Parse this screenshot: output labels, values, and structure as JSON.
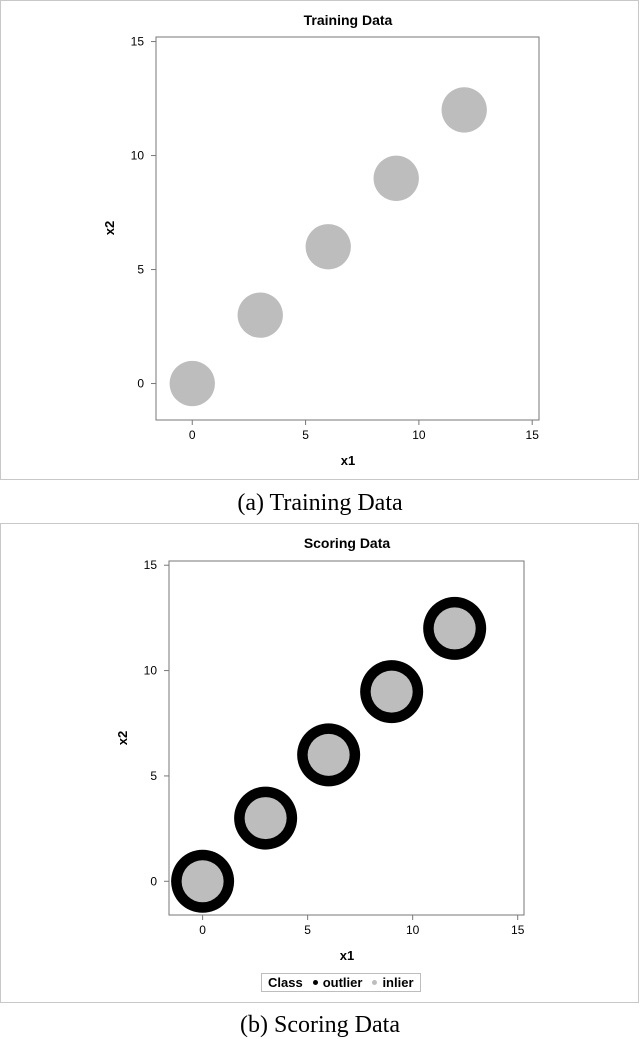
{
  "chart_data": [
    {
      "type": "scatter",
      "title": "Training Data",
      "xlabel": "x1",
      "ylabel": "x2",
      "xlim": [
        -1.6,
        15.3
      ],
      "ylim": [
        -1.6,
        15.2
      ],
      "xticks": [
        0,
        5,
        10,
        15
      ],
      "yticks": [
        0,
        5,
        10,
        15
      ],
      "grid": false,
      "series": [
        {
          "color": "#bdbdbd",
          "clusters": [
            {
              "center": [
                0,
                0
              ],
              "radius": 1.0
            },
            {
              "center": [
                3,
                3
              ],
              "radius": 1.0
            },
            {
              "center": [
                6,
                6
              ],
              "radius": 1.0
            },
            {
              "center": [
                9,
                9
              ],
              "radius": 1.0
            },
            {
              "center": [
                12,
                12
              ],
              "radius": 1.0
            }
          ]
        }
      ]
    },
    {
      "type": "scatter",
      "title": "Scoring Data",
      "xlabel": "x1",
      "ylabel": "x2",
      "xlim": [
        -1.6,
        15.3
      ],
      "ylim": [
        -1.6,
        15.2
      ],
      "xticks": [
        0,
        5,
        10,
        15
      ],
      "yticks": [
        0,
        5,
        10,
        15
      ],
      "grid": false,
      "legend": {
        "position": "bottom",
        "title": "Class"
      },
      "series": [
        {
          "name": "outlier",
          "color": "#000000",
          "clusters": [
            {
              "center": [
                0,
                0
              ],
              "radius": 1.5
            },
            {
              "center": [
                3,
                3
              ],
              "radius": 1.5
            },
            {
              "center": [
                6,
                6
              ],
              "radius": 1.5
            },
            {
              "center": [
                9,
                9
              ],
              "radius": 1.5
            },
            {
              "center": [
                12,
                12
              ],
              "radius": 1.5
            }
          ]
        },
        {
          "name": "inlier",
          "color": "#bdbdbd",
          "clusters": [
            {
              "center": [
                0,
                0
              ],
              "radius": 1.0
            },
            {
              "center": [
                3,
                3
              ],
              "radius": 1.0
            },
            {
              "center": [
                6,
                6
              ],
              "radius": 1.0
            },
            {
              "center": [
                9,
                9
              ],
              "radius": 1.0
            },
            {
              "center": [
                12,
                12
              ],
              "radius": 1.0
            }
          ]
        }
      ]
    }
  ],
  "captions": [
    "(a) Training Data",
    "(b) Scoring Data"
  ]
}
